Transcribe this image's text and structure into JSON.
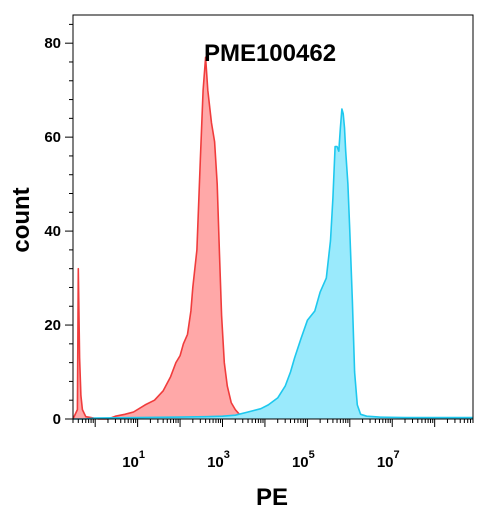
{
  "chart_data": {
    "type": "area",
    "title": "PME100462",
    "xlabel": "PE",
    "ylabel": "count",
    "x_scale": "log",
    "xlim": [
      0.3,
      800000000
    ],
    "ylim": [
      0,
      86
    ],
    "x_tick_base": "10",
    "x_ticks": [
      {
        "value": 10,
        "exponent": "1"
      },
      {
        "value": 1000,
        "exponent": "3"
      },
      {
        "value": 100000,
        "exponent": "5"
      },
      {
        "value": 10000000,
        "exponent": "7"
      }
    ],
    "y_ticks": [
      0,
      20,
      40,
      60,
      80
    ],
    "series": [
      {
        "color": "#f03c3c",
        "fill": "#ffa8a8",
        "points": [
          [
            0.3,
            0
          ],
          [
            0.38,
            2
          ],
          [
            0.4,
            32
          ],
          [
            0.43,
            13
          ],
          [
            0.46,
            5
          ],
          [
            0.5,
            2
          ],
          [
            0.6,
            0.5
          ],
          [
            0.8,
            0.3
          ],
          [
            1.2,
            0
          ],
          [
            2,
            0
          ],
          [
            3,
            0.6
          ],
          [
            5,
            1
          ],
          [
            8,
            1.5
          ],
          [
            15,
            3
          ],
          [
            25,
            4
          ],
          [
            40,
            6
          ],
          [
            60,
            9
          ],
          [
            80,
            12
          ],
          [
            100,
            13.5
          ],
          [
            120,
            16
          ],
          [
            150,
            18
          ],
          [
            180,
            23
          ],
          [
            200,
            28
          ],
          [
            250,
            36
          ],
          [
            300,
            55
          ],
          [
            350,
            70
          ],
          [
            400,
            77
          ],
          [
            450,
            70
          ],
          [
            550,
            63
          ],
          [
            650,
            59
          ],
          [
            750,
            50
          ],
          [
            850,
            35
          ],
          [
            950,
            22
          ],
          [
            1100,
            12
          ],
          [
            1300,
            7
          ],
          [
            1600,
            3.5
          ],
          [
            2000,
            2
          ],
          [
            2500,
            1
          ],
          [
            3000,
            0.5
          ],
          [
            3500,
            0.2
          ],
          [
            4000,
            0
          ]
        ]
      },
      {
        "color": "#1ec8ee",
        "fill": "#9aeafc",
        "points": [
          [
            0.3,
            0
          ],
          [
            0.6,
            0
          ],
          [
            1,
            0.2
          ],
          [
            10,
            0.3
          ],
          [
            100,
            0.4
          ],
          [
            400,
            0.5
          ],
          [
            1000,
            0.6
          ],
          [
            2000,
            0.8
          ],
          [
            4000,
            1.5
          ],
          [
            8000,
            2.2
          ],
          [
            12000,
            3
          ],
          [
            20000,
            4.5
          ],
          [
            30000,
            7
          ],
          [
            40000,
            10
          ],
          [
            50000,
            13
          ],
          [
            70000,
            17
          ],
          [
            100000,
            21
          ],
          [
            150000,
            23
          ],
          [
            200000,
            27
          ],
          [
            280000,
            30
          ],
          [
            350000,
            38
          ],
          [
            400000,
            47
          ],
          [
            450000,
            58
          ],
          [
            500000,
            58
          ],
          [
            550000,
            57
          ],
          [
            600000,
            62
          ],
          [
            650000,
            66
          ],
          [
            700000,
            65
          ],
          [
            750000,
            62
          ],
          [
            800000,
            57
          ],
          [
            900000,
            50
          ],
          [
            1000000,
            40
          ],
          [
            1150000,
            25
          ],
          [
            1300000,
            10
          ],
          [
            1500000,
            3
          ],
          [
            1800000,
            1
          ],
          [
            2500000,
            0.6
          ],
          [
            5000000,
            0.4
          ],
          [
            20000000,
            0.3
          ],
          [
            100000000,
            0.3
          ],
          [
            800000000,
            0.3
          ]
        ]
      }
    ]
  }
}
